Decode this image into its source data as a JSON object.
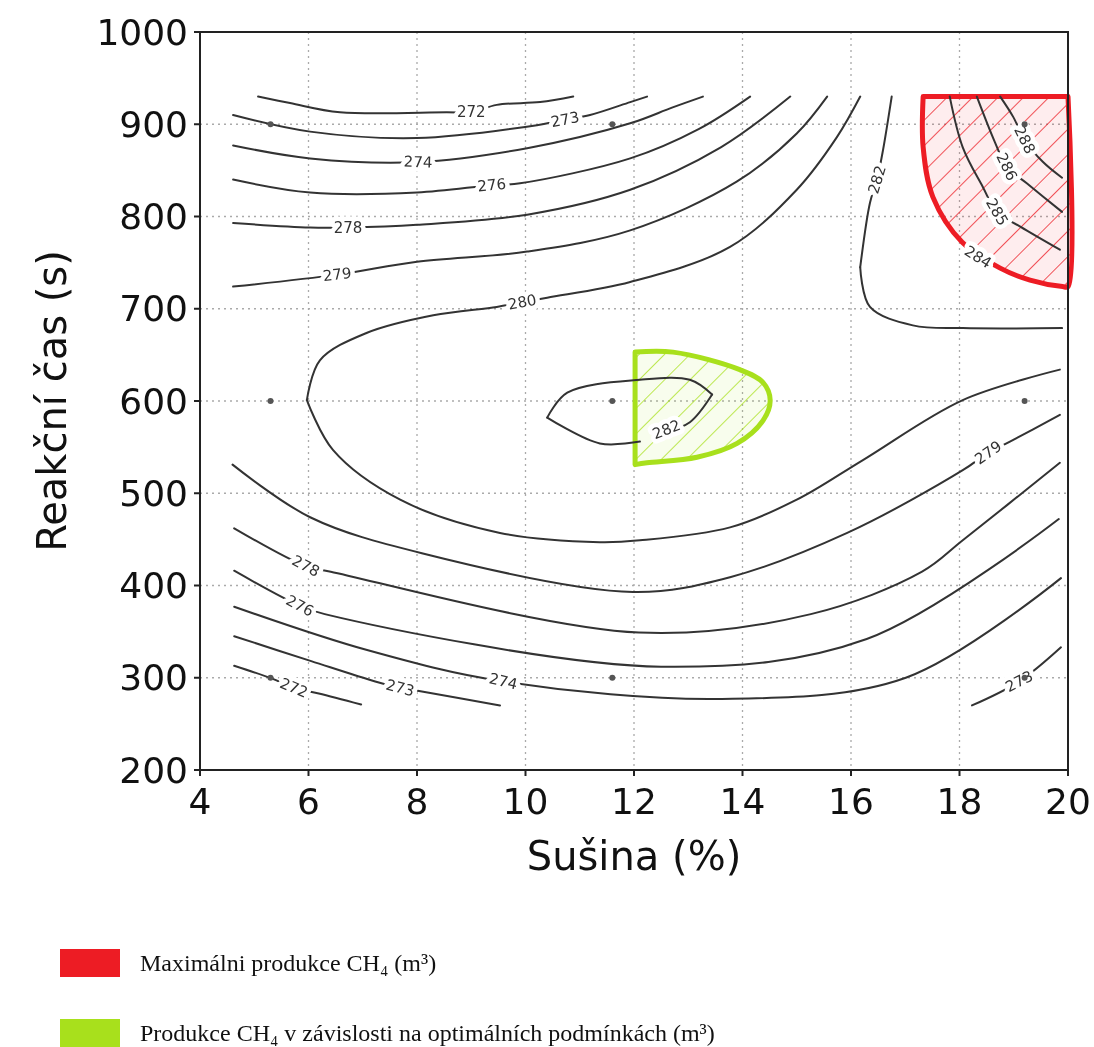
{
  "chart_data": {
    "type": "line",
    "xlabel": "Sušina (%)",
    "ylabel": "Reakční čas (s)",
    "xlim": [
      4,
      20
    ],
    "ylim": [
      200,
      1000
    ],
    "xticks": [
      4,
      6,
      8,
      10,
      12,
      14,
      16,
      18,
      20
    ],
    "yticks": [
      200,
      300,
      400,
      500,
      600,
      700,
      800,
      900,
      1000
    ],
    "grid": true,
    "legend": "bottom",
    "series": [
      {
        "type": "area",
        "name": "Maximálni produkce CH₄ (m³)",
        "color": "#ed1c24",
        "x": [
          17.33,
          17.33,
          17.51,
          18.05,
          18.75,
          19.3,
          19.9,
          20,
          20
        ],
        "values": [
          930,
          875,
          821,
          772,
          744,
          731,
          724,
          724,
          930
        ]
      },
      {
        "type": "area",
        "name": "Produkce CH₄ v závislosti na optimálních podmínkách (m³)",
        "color": "#a8e01c",
        "x": [
          12.02,
          12.72,
          13.95,
          14.38,
          14.51,
          14.38,
          13.9,
          13.16,
          12.24,
          12.02
        ],
        "values": [
          653,
          653,
          634,
          620,
          601,
          579,
          554,
          539,
          533,
          531
        ]
      },
      {
        "color": "#333333",
        "x": [
          5.07,
          5.66,
          6.58,
          8.55,
          9.0,
          9.47,
          10.27,
          10.88
        ],
        "values": [
          930,
          923,
          913,
          913,
          913,
          921,
          924,
          930
        ]
      },
      {
        "color": "#333333",
        "x": [
          4.61,
          6.03,
          8.0,
          10.21,
          10.73,
          11.19,
          11.93,
          12.24
        ],
        "values": [
          910,
          892,
          885,
          899,
          905,
          910,
          924,
          930
        ]
      },
      {
        "color": "#333333",
        "x": [
          4.61,
          6.03,
          8.02,
          10.03,
          11.93,
          12.7,
          13.27
        ],
        "values": [
          877,
          863,
          859,
          874,
          901,
          918,
          930
        ]
      },
      {
        "color": "#333333",
        "x": [
          4.61,
          6.03,
          8.0,
          9.38,
          9.9,
          11.93,
          13.2,
          14.14
        ],
        "values": [
          840,
          826,
          826,
          834,
          836,
          863,
          895,
          930
        ]
      },
      {
        "color": "#333333",
        "x": [
          4.61,
          6.03,
          6.73,
          8.0,
          10.03,
          11.93,
          13.6,
          14.88
        ],
        "values": [
          793,
          788,
          788,
          791,
          802,
          829,
          875,
          930
        ]
      },
      {
        "color": "#333333",
        "x": [
          4.61,
          6.53,
          8.0,
          10.03,
          11.93,
          13.9,
          15.0,
          15.56
        ],
        "values": [
          724,
          737,
          751,
          762,
          785,
          838,
          890,
          930
        ]
      },
      {
        "color": "#333333",
        "x": [
          5.97,
          6.21,
          7.08,
          8.3,
          9.47,
          9.94,
          10.4,
          11.93,
          13.77,
          15.0,
          15.74,
          16.17
        ],
        "values": [
          601,
          644,
          674,
          693,
          702,
          707,
          712,
          729,
          767,
          829,
          886,
          930
        ]
      },
      {
        "color": "#333333",
        "x": [
          5.97,
          6.45,
          7.69,
          9.53,
          11.37,
          12.11,
          13.77,
          15.0,
          16.22,
          18.06,
          19.85
        ],
        "values": [
          601,
          547,
          493,
          457,
          447,
          449,
          463,
          493,
          536,
          601,
          634
        ]
      },
      {
        "color": "#333333",
        "x": [
          10.4,
          10.77,
          12.11,
          13.03,
          13.44
        ],
        "values": [
          582,
          609,
          623,
          623,
          607
        ]
      },
      {
        "color": "#333333",
        "x": [
          10.4,
          11.37,
          12.11
        ],
        "values": [
          582,
          554,
          556
        ]
      },
      {
        "color": "#333333",
        "x": [
          12.6,
          13.03,
          13.44
        ],
        "values": [
          567,
          577,
          607
        ]
      },
      {
        "color": "#333333",
        "x": [
          16.17,
          16.35,
          16.48,
          16.59,
          16.75
        ],
        "values": [
          745,
          815,
          840,
          872,
          930
        ]
      },
      {
        "color": "#333333",
        "x": [
          16.17,
          16.35,
          17.14,
          18.06,
          19.89
        ],
        "values": [
          745,
          702,
          682,
          679,
          679
        ]
      },
      {
        "color": "#333333",
        "x": [
          17.82,
          18.06,
          18.43,
          18.69,
          19.12,
          19.85
        ],
        "values": [
          930,
          875,
          832,
          805,
          789,
          764
        ]
      },
      {
        "color": "#333333",
        "x": [
          18.32,
          18.65,
          18.87,
          19.24,
          19.89
        ],
        "values": [
          930,
          881,
          854,
          836,
          805
        ]
      },
      {
        "color": "#333333",
        "x": [
          18.75,
          18.99,
          19.2,
          19.54,
          19.89
        ],
        "values": [
          930,
          908,
          883,
          859,
          842
        ]
      },
      {
        "color": "#333333",
        "x": [
          4.6,
          6.03,
          8.09,
          11.98,
          13.77,
          15.93,
          18.06,
          18.53,
          18.93,
          19.85
        ],
        "values": [
          531,
          474,
          435,
          393,
          409,
          457,
          525,
          544,
          556,
          585
        ]
      },
      {
        "color": "#333333",
        "x": [
          4.63,
          5.95,
          6.41,
          12.09,
          15.26,
          17.31,
          18.06,
          19.85
        ],
        "values": [
          462,
          421,
          415,
          349,
          369,
          415,
          449,
          533
        ]
      },
      {
        "color": "#333333",
        "x": [
          4.63,
          5.84,
          6.3,
          12.5,
          16.29,
          19.83
        ],
        "values": [
          416,
          378,
          369,
          312,
          342,
          472
        ]
      },
      {
        "color": "#333333",
        "x": [
          4.63,
          7.08,
          9.59,
          13.62,
          17.01,
          19.87
        ],
        "values": [
          377,
          330,
          296,
          277,
          300,
          408
        ]
      },
      {
        "color": "#333333",
        "x": [
          4.63,
          6.05,
          7.23,
          7.69,
          8.09,
          9.53
        ],
        "values": [
          345,
          318,
          296,
          289,
          285,
          270
        ]
      },
      {
        "color": "#333333",
        "x": [
          4.63,
          5.33,
          5.73,
          6.19,
          6.97
        ],
        "values": [
          313,
          299,
          289,
          283,
          271
        ]
      },
      {
        "color": "#333333",
        "x": [
          18.23,
          19.1,
          19.87
        ],
        "values": [
          270,
          296,
          333
        ]
      },
      {
        "type": "scatter",
        "color": "#555555",
        "marker": "circle",
        "x": [
          5.3,
          11.6,
          19.2,
          5.3,
          11.6,
          19.2,
          5.3,
          11.6,
          19.2
        ],
        "values": [
          900,
          900,
          900,
          600,
          600,
          600,
          300,
          300,
          300
        ]
      }
    ],
    "annotations": [
      {
        "text": "272",
        "x": 9.0,
        "y": 913
      },
      {
        "text": "273",
        "x": 10.73,
        "y": 905
      },
      {
        "text": "274",
        "x": 8.02,
        "y": 859
      },
      {
        "text": "276",
        "x": 9.38,
        "y": 834
      },
      {
        "text": "278",
        "x": 6.73,
        "y": 788
      },
      {
        "text": "279",
        "x": 6.53,
        "y": 737
      },
      {
        "text": "280",
        "x": 9.94,
        "y": 707
      },
      {
        "text": "282",
        "x": 16.48,
        "y": 840
      },
      {
        "text": "288",
        "x": 19.2,
        "y": 883
      },
      {
        "text": "286",
        "x": 18.87,
        "y": 854
      },
      {
        "text": "285",
        "x": 18.69,
        "y": 805
      },
      {
        "text": "284",
        "x": 18.34,
        "y": 756
      },
      {
        "text": "282",
        "x": 12.6,
        "y": 569
      },
      {
        "text": "279",
        "x": 18.53,
        "y": 544
      },
      {
        "text": "278",
        "x": 5.95,
        "y": 421
      },
      {
        "text": "276",
        "x": 5.84,
        "y": 378
      },
      {
        "text": "274",
        "x": 9.59,
        "y": 296
      },
      {
        "text": "273",
        "x": 7.69,
        "y": 289
      },
      {
        "text": "272",
        "x": 5.73,
        "y": 289
      },
      {
        "text": "273",
        "x": 19.1,
        "y": 296
      }
    ]
  }
}
